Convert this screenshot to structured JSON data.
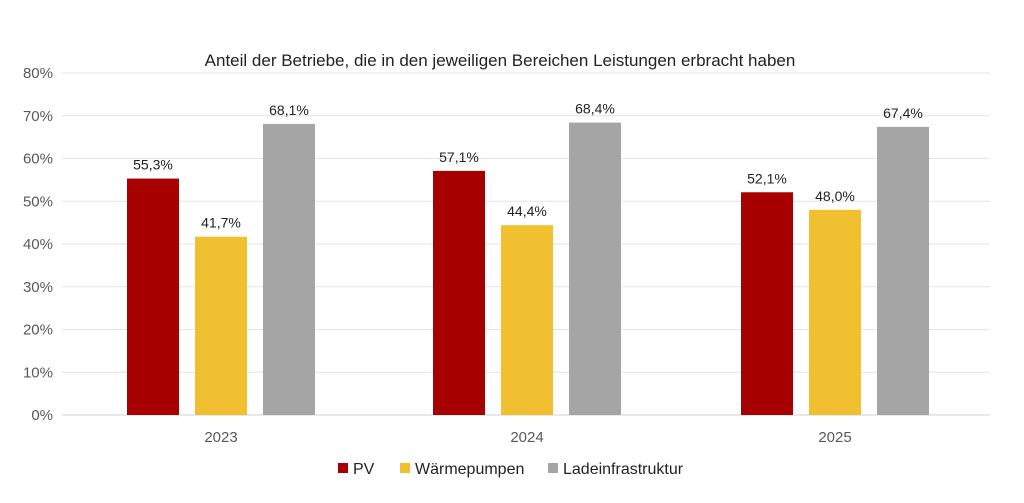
{
  "chart_data": {
    "type": "bar",
    "title": "Anteil der Betriebe, die in den jeweiligen Bereichen Leistungen erbracht haben",
    "categories": [
      "2023",
      "2024",
      "2025"
    ],
    "series": [
      {
        "name": "PV",
        "values": [
          55.3,
          57.1,
          52.1
        ],
        "labels": [
          "55,3%",
          "57,1%",
          "52,1%"
        ],
        "color": "#A60000"
      },
      {
        "name": "Wärmepumpen",
        "values": [
          41.7,
          44.4,
          48.0
        ],
        "labels": [
          "41,7%",
          "44,4%",
          "48,0%"
        ],
        "color": "#F0C030"
      },
      {
        "name": "Ladeinfrastruktur",
        "values": [
          68.1,
          68.4,
          67.4
        ],
        "labels": [
          "68,1%",
          "68,4%",
          "67,4%"
        ],
        "color": "#A5A5A5"
      }
    ],
    "ylim": [
      0,
      80
    ],
    "yticks": [
      "0%",
      "10%",
      "20%",
      "30%",
      "40%",
      "50%",
      "60%",
      "70%",
      "80%"
    ],
    "xlabel": "",
    "ylabel": "",
    "grid": true,
    "legend": "bottom"
  }
}
